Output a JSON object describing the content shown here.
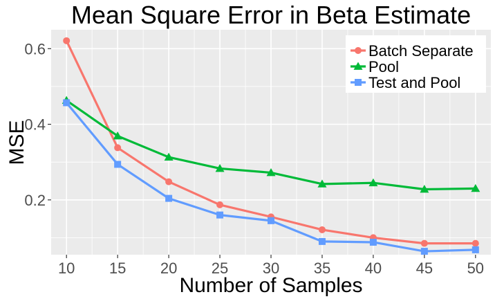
{
  "chart_data": {
    "type": "line",
    "title": "Mean Square Error in Beta Estimate",
    "xlabel": "Number of Samples",
    "ylabel": "MSE",
    "x": [
      10,
      15,
      20,
      25,
      30,
      35,
      40,
      45,
      50
    ],
    "x_ticks": [
      "10",
      "15",
      "20",
      "25",
      "30",
      "35",
      "40",
      "45",
      "50"
    ],
    "y_ticks": [
      "0.2",
      "0.4",
      "0.6"
    ],
    "xlim": [
      8.5,
      51.5
    ],
    "ylim": [
      0.055,
      0.65
    ],
    "grid": true,
    "legend_position": "top-right",
    "series": [
      {
        "name": "Batch Separate",
        "color": "#F8766D",
        "marker": "circle",
        "values": [
          0.621,
          0.338,
          0.248,
          0.187,
          0.155,
          0.121,
          0.1,
          0.085,
          0.085
        ]
      },
      {
        "name": "Pool",
        "color": "#00BA38",
        "marker": "triangle",
        "values": [
          0.463,
          0.369,
          0.313,
          0.283,
          0.272,
          0.242,
          0.245,
          0.228,
          0.23
        ]
      },
      {
        "name": "Test and Pool",
        "color": "#619CFF",
        "marker": "square",
        "values": [
          0.457,
          0.294,
          0.204,
          0.16,
          0.145,
          0.09,
          0.088,
          0.064,
          0.068
        ]
      }
    ]
  }
}
